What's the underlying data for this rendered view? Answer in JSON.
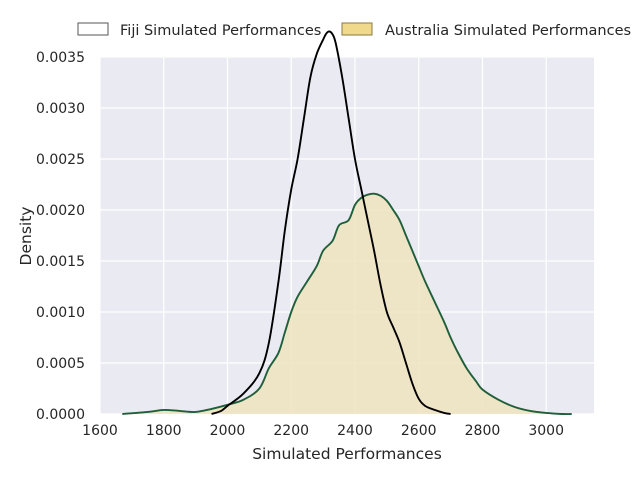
{
  "chart_data": {
    "type": "area",
    "title": "",
    "xlabel": "Simulated Performances",
    "ylabel": "Density",
    "xlim": [
      1600,
      3150
    ],
    "ylim": [
      0,
      0.0035
    ],
    "xticks": [
      1600,
      1800,
      2000,
      2200,
      2400,
      2600,
      2800,
      3000
    ],
    "yticks": [
      "0.0000",
      "0.0005",
      "0.0010",
      "0.0015",
      "0.0020",
      "0.0025",
      "0.0030",
      "0.0035"
    ],
    "grid": true,
    "legend_position": "top",
    "series": [
      {
        "name": "Fiji Simulated Performances",
        "fill": false,
        "line_color": "#000000",
        "swatch_color": "#ffffff",
        "x": [
          1950,
          1980,
          2000,
          2050,
          2100,
          2130,
          2160,
          2180,
          2200,
          2220,
          2240,
          2260,
          2280,
          2300,
          2310,
          2320,
          2330,
          2340,
          2360,
          2380,
          2400,
          2420,
          2440,
          2460,
          2480,
          2500,
          2520,
          2540,
          2560,
          2580,
          2600,
          2620,
          2650,
          2680,
          2700
        ],
        "y": [
          0.0,
          3e-05,
          8e-05,
          0.0002,
          0.0004,
          0.0007,
          0.0013,
          0.0018,
          0.0022,
          0.0025,
          0.0029,
          0.0033,
          0.00353,
          0.00367,
          0.00373,
          0.00375,
          0.00372,
          0.00363,
          0.0033,
          0.0029,
          0.0025,
          0.0022,
          0.0019,
          0.0016,
          0.00127,
          0.001,
          0.00085,
          0.0007,
          0.0005,
          0.0003,
          0.00015,
          8e-05,
          4e-05,
          1e-05,
          0.0
        ]
      },
      {
        "name": "Australia Simulated Performances",
        "fill": true,
        "line_color": "#1f5f3a",
        "fill_color": "#efe3be",
        "swatch_color": "#f0d98a",
        "x": [
          1670,
          1750,
          1800,
          1850,
          1900,
          1950,
          2000,
          2050,
          2100,
          2130,
          2160,
          2180,
          2200,
          2220,
          2250,
          2280,
          2300,
          2330,
          2350,
          2380,
          2400,
          2420,
          2440,
          2460,
          2480,
          2500,
          2520,
          2540,
          2560,
          2580,
          2600,
          2620,
          2650,
          2680,
          2700,
          2720,
          2750,
          2780,
          2800,
          2850,
          2900,
          2950,
          3000,
          3050,
          3080
        ],
        "y": [
          0.0,
          2e-05,
          4e-05,
          3e-05,
          2e-05,
          5e-05,
          9e-05,
          0.00014,
          0.00025,
          0.00045,
          0.0006,
          0.0008,
          0.001,
          0.00115,
          0.0013,
          0.00145,
          0.0016,
          0.0017,
          0.00185,
          0.0019,
          0.00205,
          0.00212,
          0.00215,
          0.00216,
          0.00214,
          0.00209,
          0.002,
          0.0019,
          0.00175,
          0.0016,
          0.00145,
          0.0013,
          0.0011,
          0.0009,
          0.00075,
          0.00062,
          0.00045,
          0.00032,
          0.00024,
          0.00014,
          7e-05,
          3e-05,
          1e-05,
          0.0,
          0.0
        ]
      }
    ]
  }
}
